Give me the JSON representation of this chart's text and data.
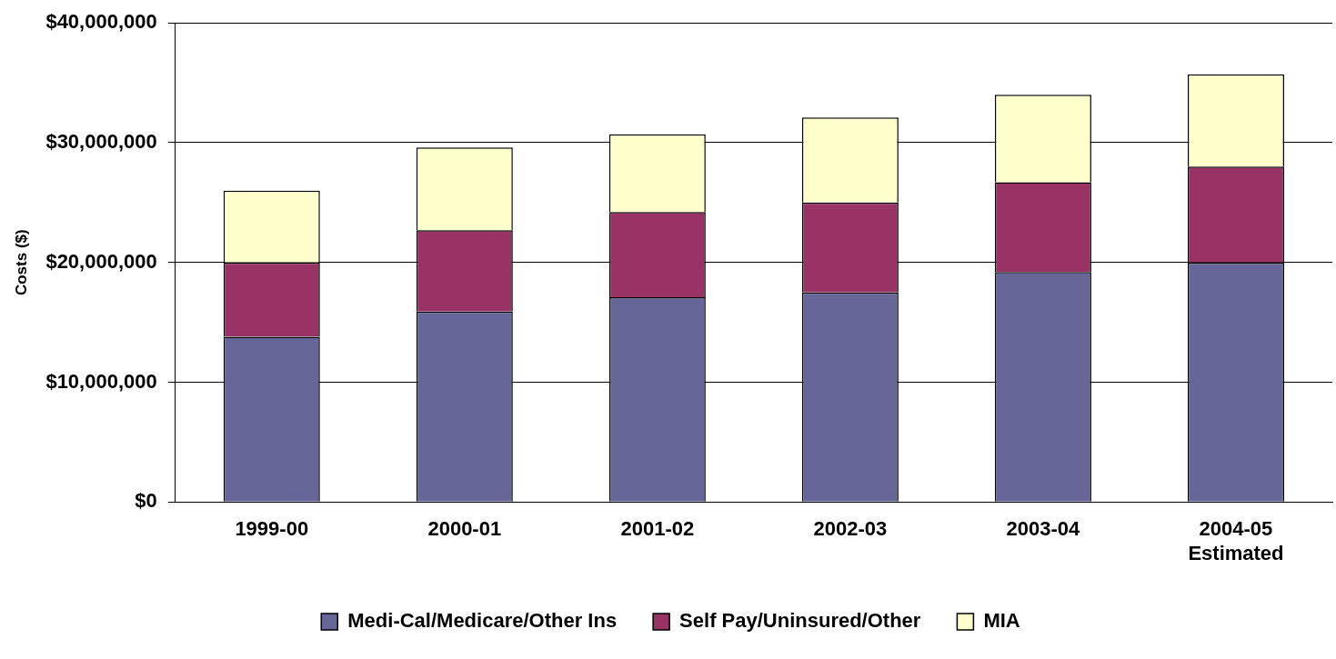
{
  "chart_data": {
    "type": "bar",
    "stacked": true,
    "ylabel": "Costs ($)",
    "categories": [
      "1999-00",
      "2000-01",
      "2001-02",
      "2002-03",
      "2003-04",
      "2004-05\nEstimated"
    ],
    "series": [
      {
        "name": "Medi-Cal/Medicare/Other Ins",
        "color": "#666699",
        "values": [
          13800000,
          15900000,
          17100000,
          17500000,
          19200000,
          20000000
        ]
      },
      {
        "name": "Self Pay/Uninsured/Other",
        "color": "#993366",
        "values": [
          6200000,
          6800000,
          7100000,
          7500000,
          7500000,
          8000000
        ]
      },
      {
        "name": "MIA",
        "color": "#ffffcc",
        "values": [
          6000000,
          6900000,
          6500000,
          7100000,
          7300000,
          7700000
        ]
      }
    ],
    "ylim": [
      0,
      40000000
    ],
    "yticks": [
      {
        "value": 0,
        "label": "$0"
      },
      {
        "value": 10000000,
        "label": "$10,000,000"
      },
      {
        "value": 20000000,
        "label": "$20,000,000"
      },
      {
        "value": 30000000,
        "label": "$30,000,000"
      },
      {
        "value": 40000000,
        "label": "$40,000,000"
      }
    ],
    "grid": "y",
    "legend": "bottom"
  }
}
